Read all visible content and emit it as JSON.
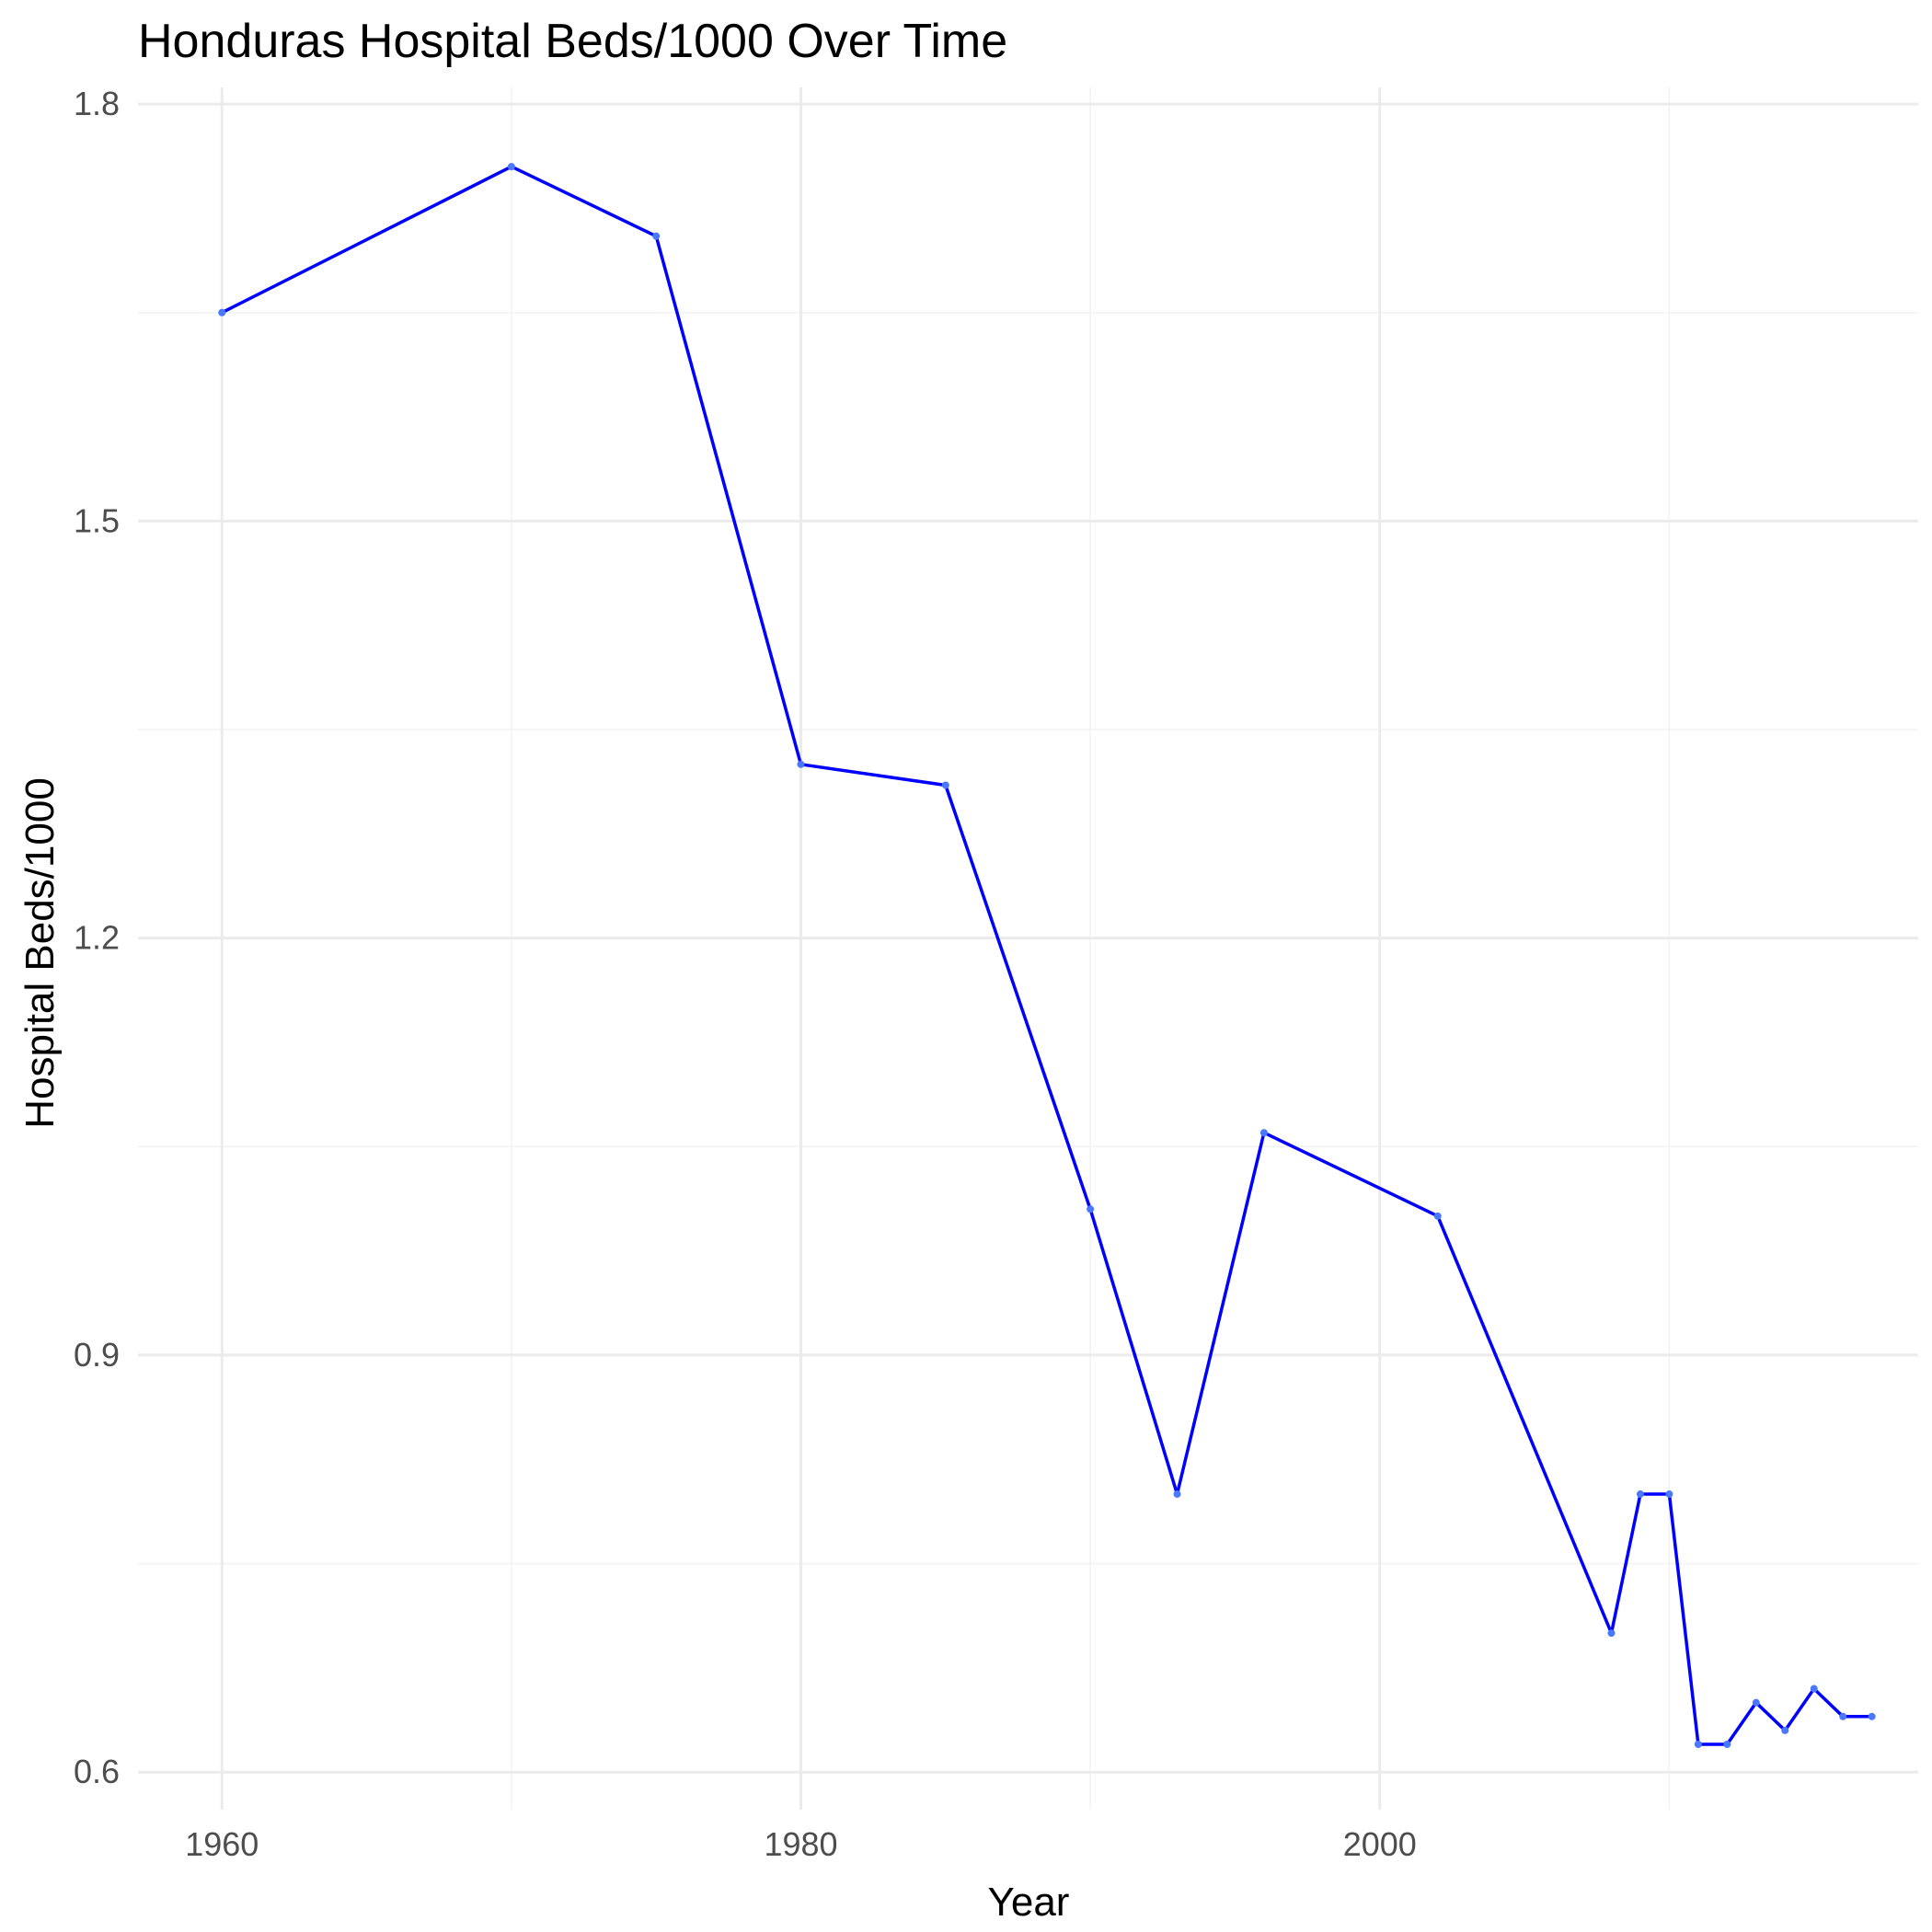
{
  "chart_data": {
    "type": "line",
    "title": "Honduras Hospital Beds/1000 Over Time",
    "xlabel": "Year",
    "ylabel": "Hospital Beds/1000",
    "x": [
      1960,
      1970,
      1975,
      1980,
      1985,
      1990,
      1993,
      1996,
      2002,
      2008,
      2009,
      2010,
      2011,
      2012,
      2013,
      2014,
      2015,
      2016,
      2017
    ],
    "y": [
      1.65,
      1.755,
      1.705,
      1.325,
      1.31,
      1.005,
      0.8,
      1.06,
      1.0,
      0.7,
      0.8,
      0.8,
      0.62,
      0.62,
      0.65,
      0.63,
      0.66,
      0.64,
      0.64
    ],
    "xlim": [
      1957.1,
      2018.6
    ],
    "ylim": [
      0.573,
      1.812
    ],
    "xticks": [
      1960,
      1980,
      2000
    ],
    "yticks": [
      0.6,
      0.9,
      1.2,
      1.5,
      1.8
    ],
    "xtick_labels": [
      "1960",
      "1980",
      "2000"
    ],
    "ytick_labels": [
      "0.6",
      "0.9",
      "1.2",
      "1.5",
      "1.8"
    ],
    "grid": true,
    "line_color": "#0000ff",
    "point_color": "#4a78ff"
  }
}
